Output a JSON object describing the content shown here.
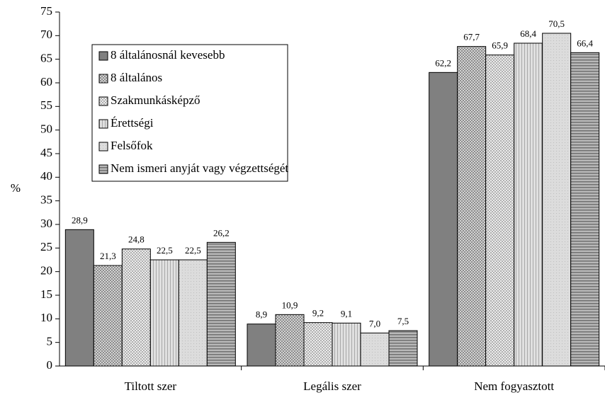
{
  "chart_data": {
    "type": "bar",
    "ylabel": "%",
    "categories": [
      "Tiltott szer",
      "Legális szer",
      "Nem fogyasztott"
    ],
    "ylim": [
      0,
      75
    ],
    "yticks": [
      0,
      5,
      10,
      15,
      20,
      25,
      30,
      35,
      40,
      45,
      50,
      55,
      60,
      65,
      70,
      75
    ],
    "legend": "upper left",
    "series": [
      {
        "name": "8 általánosnál kevesebb",
        "color": "#808080",
        "hatch": "solid",
        "values": [
          28.9,
          8.9,
          62.2
        ],
        "value_labels": [
          "28,9",
          "8,9",
          "62,2"
        ]
      },
      {
        "name": "8 általános",
        "color": "#8a8a8a",
        "hatch": "cross",
        "values": [
          21.3,
          10.9,
          67.7
        ],
        "value_labels": [
          "21,3",
          "10,9",
          "67,7"
        ]
      },
      {
        "name": "Szakmunkásképző",
        "color": "#b0b0b0",
        "hatch": "dots",
        "values": [
          24.8,
          9.2,
          65.9
        ],
        "value_labels": [
          "24,8",
          "9,2",
          "65,9"
        ]
      },
      {
        "name": "Érettségi",
        "color": "#a8a8a8",
        "hatch": "vertical",
        "values": [
          22.5,
          9.1,
          68.4
        ],
        "value_labels": [
          "22,5",
          "9,1",
          "68,4"
        ]
      },
      {
        "name": "Felsőfok",
        "color": "#bdbdbd",
        "hatch": "fine",
        "values": [
          22.5,
          7.0,
          70.5
        ],
        "value_labels": [
          "22,5",
          "7,0",
          "70,5"
        ]
      },
      {
        "name": "Nem ismeri anyját vagy végzettségét",
        "color": "#707070",
        "hatch": "horizontal",
        "values": [
          26.2,
          7.5,
          66.4
        ],
        "value_labels": [
          "26,2",
          "7,5",
          "66,4"
        ]
      }
    ]
  }
}
